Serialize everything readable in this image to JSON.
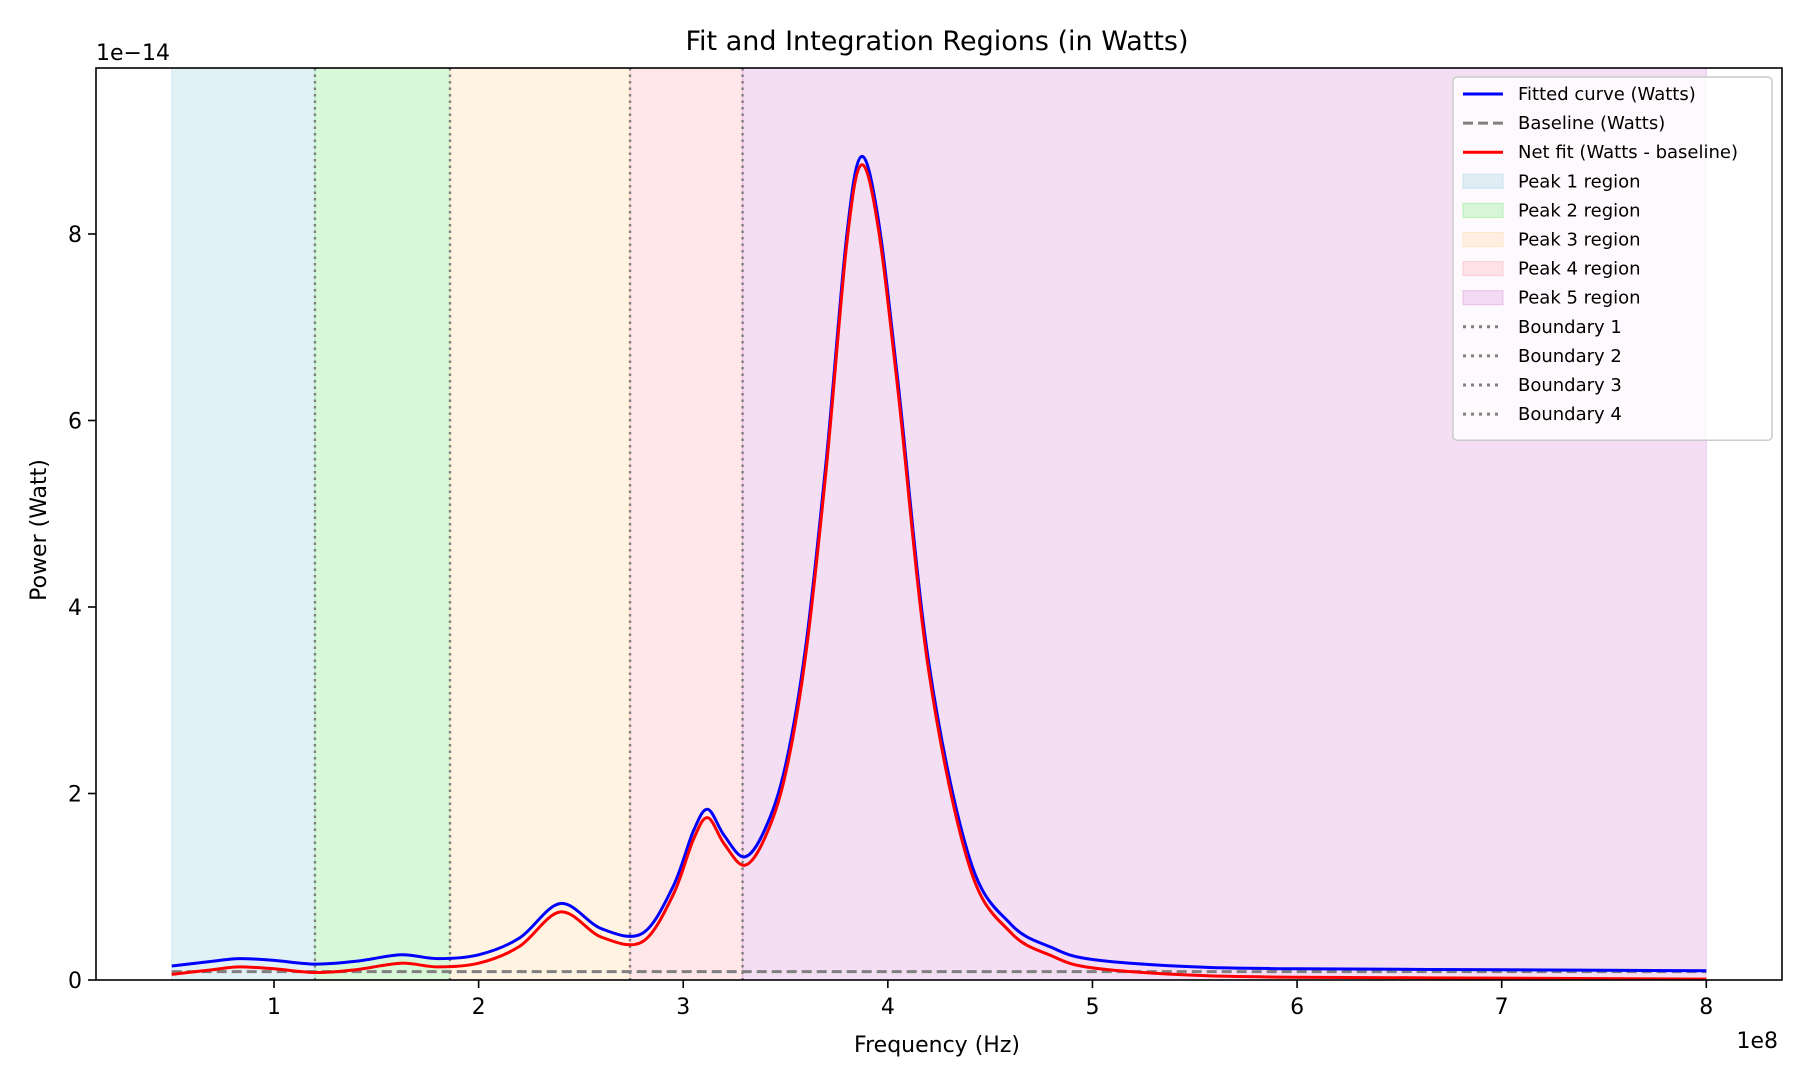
{
  "chart_data": {
    "type": "line",
    "title": "Fit and Integration Regions (in Watts)",
    "xlabel": "Frequency (Hz)",
    "ylabel": "Power (Watt)",
    "x_multiplier_label": "1e8",
    "y_multiplier_label": "1e−14",
    "xlim": [
      0.13,
      8.37
    ],
    "ylim": [
      0,
      9.78
    ],
    "xticks": [
      1,
      2,
      3,
      4,
      5,
      6,
      7,
      8
    ],
    "yticks": [
      0,
      2,
      4,
      6,
      8
    ],
    "grid": false,
    "legend_position": "top-right",
    "colors": {
      "fitted": "#0000ff",
      "baseline": "#808080",
      "net": "#ff0000",
      "boundary": "#808080"
    },
    "series": [
      {
        "name": "Fitted curve (Watts)",
        "style": "solid",
        "color": "#0000ff",
        "x": [
          0.5,
          0.7,
          0.83,
          1.0,
          1.2,
          1.4,
          1.62,
          1.8,
          2.0,
          2.2,
          2.4,
          2.6,
          2.8,
          2.95,
          3.05,
          3.12,
          3.2,
          3.3,
          3.4,
          3.5,
          3.6,
          3.7,
          3.8,
          3.87,
          3.95,
          4.05,
          4.2,
          4.4,
          4.6,
          4.8,
          5.0,
          5.5,
          6.0,
          7.0,
          8.0
        ],
        "y": [
          0.15,
          0.2,
          0.23,
          0.21,
          0.17,
          0.2,
          0.27,
          0.23,
          0.27,
          0.45,
          0.82,
          0.55,
          0.5,
          1.0,
          1.6,
          1.83,
          1.55,
          1.32,
          1.62,
          2.3,
          3.6,
          5.6,
          8.0,
          8.83,
          8.2,
          6.4,
          3.4,
          1.3,
          0.6,
          0.35,
          0.22,
          0.14,
          0.12,
          0.11,
          0.1
        ]
      },
      {
        "name": "Baseline (Watts)",
        "style": "dashed",
        "color": "#808080",
        "x": [
          0.5,
          8.0
        ],
        "y": [
          0.09,
          0.09
        ]
      },
      {
        "name": "Net fit (Watts - baseline)",
        "style": "solid",
        "color": "#ff0000",
        "x": [
          0.5,
          0.7,
          0.83,
          1.0,
          1.2,
          1.4,
          1.62,
          1.8,
          2.0,
          2.2,
          2.4,
          2.6,
          2.8,
          2.95,
          3.05,
          3.12,
          3.2,
          3.3,
          3.4,
          3.5,
          3.6,
          3.7,
          3.8,
          3.87,
          3.95,
          4.05,
          4.2,
          4.4,
          4.6,
          4.8,
          5.0,
          5.5,
          6.0,
          7.0,
          8.0
        ],
        "y": [
          0.06,
          0.11,
          0.14,
          0.12,
          0.08,
          0.11,
          0.18,
          0.14,
          0.18,
          0.36,
          0.73,
          0.46,
          0.41,
          0.91,
          1.51,
          1.74,
          1.46,
          1.23,
          1.53,
          2.21,
          3.51,
          5.51,
          7.91,
          8.74,
          8.11,
          6.31,
          3.31,
          1.21,
          0.51,
          0.26,
          0.13,
          0.05,
          0.03,
          0.02,
          0.01
        ]
      }
    ],
    "regions": [
      {
        "name": "Peak 1 region",
        "x0": 0.5,
        "x1": 1.2,
        "color": "#add8e6"
      },
      {
        "name": "Peak 2 region",
        "x0": 1.2,
        "x1": 1.86,
        "color": "#90ee90"
      },
      {
        "name": "Peak 3 region",
        "x0": 1.86,
        "x1": 2.74,
        "color": "#ffdead"
      },
      {
        "name": "Peak 4 region",
        "x0": 2.74,
        "x1": 3.29,
        "color": "#ffb6c1"
      },
      {
        "name": "Peak 5 region",
        "x0": 3.29,
        "x1": 8.0,
        "color": "#dda0dd"
      }
    ],
    "boundaries": [
      {
        "name": "Boundary 1",
        "x": 1.2
      },
      {
        "name": "Boundary 2",
        "x": 1.86
      },
      {
        "name": "Boundary 3",
        "x": 2.74
      },
      {
        "name": "Boundary 4",
        "x": 3.29
      }
    ]
  }
}
